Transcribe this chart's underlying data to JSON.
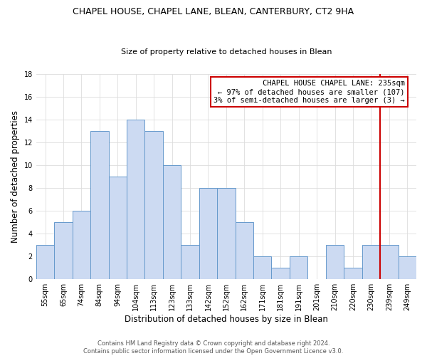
{
  "title": "CHAPEL HOUSE, CHAPEL LANE, BLEAN, CANTERBURY, CT2 9HA",
  "subtitle": "Size of property relative to detached houses in Blean",
  "xlabel": "Distribution of detached houses by size in Blean",
  "ylabel": "Number of detached properties",
  "bin_labels": [
    "55sqm",
    "65sqm",
    "74sqm",
    "84sqm",
    "94sqm",
    "104sqm",
    "113sqm",
    "123sqm",
    "133sqm",
    "142sqm",
    "152sqm",
    "162sqm",
    "171sqm",
    "181sqm",
    "191sqm",
    "201sqm",
    "210sqm",
    "220sqm",
    "230sqm",
    "239sqm",
    "249sqm"
  ],
  "bar_heights": [
    3,
    5,
    6,
    13,
    9,
    14,
    13,
    10,
    3,
    8,
    8,
    5,
    2,
    1,
    2,
    0,
    3,
    1,
    3,
    3,
    2
  ],
  "bar_color": "#ccdaf2",
  "bar_edge_color": "#6699cc",
  "highlight_bar_index": 19,
  "red_line_color": "#cc0000",
  "annotation_text": "CHAPEL HOUSE CHAPEL LANE: 235sqm\n← 97% of detached houses are smaller (107)\n3% of semi-detached houses are larger (3) →",
  "annotation_box_color": "#ffffff",
  "annotation_box_edge_color": "#cc0000",
  "ylim": [
    0,
    18
  ],
  "yticks": [
    0,
    2,
    4,
    6,
    8,
    10,
    12,
    14,
    16,
    18
  ],
  "footer_line1": "Contains HM Land Registry data © Crown copyright and database right 2024.",
  "footer_line2": "Contains public sector information licensed under the Open Government Licence v3.0.",
  "bg_color": "#ffffff",
  "grid_color": "#dddddd",
  "title_fontsize": 9,
  "subtitle_fontsize": 8,
  "tick_fontsize": 7,
  "label_fontsize": 8.5,
  "annotation_fontsize": 7.5,
  "footer_fontsize": 6
}
